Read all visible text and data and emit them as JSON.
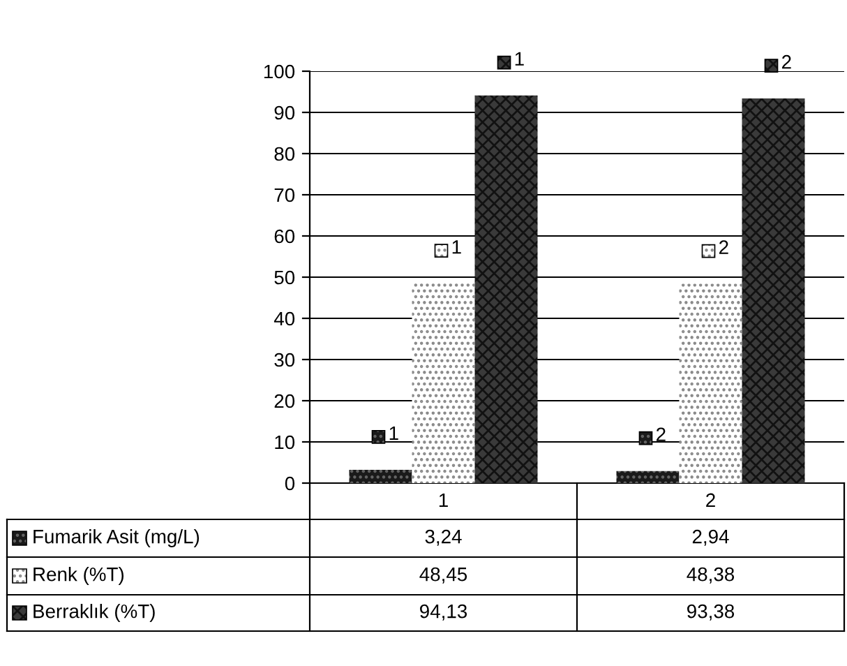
{
  "chart_data": {
    "type": "bar",
    "categories": [
      "1",
      "2"
    ],
    "series": [
      {
        "name": "Fumarik Asit (mg/L)",
        "color": "#1a1a1a",
        "values": [
          3.24,
          2.94
        ],
        "value_labels": [
          "3,24",
          "2,94"
        ]
      },
      {
        "name": "Renk (%T)",
        "color": "#ffffff",
        "values": [
          48.45,
          48.38
        ],
        "value_labels": [
          "48,45",
          "48,38"
        ]
      },
      {
        "name": "Berraklık (%T)",
        "color": "#3a3a3a",
        "values": [
          94.13,
          93.38
        ],
        "value_labels": [
          "94,13",
          "93,38"
        ]
      }
    ],
    "annotations": [
      "1",
      "1",
      "1",
      "2",
      "2",
      "2"
    ],
    "ylim": [
      0,
      100
    ],
    "yticks": [
      0,
      10,
      20,
      30,
      40,
      50,
      60,
      70,
      80,
      90,
      100
    ],
    "grid": "y",
    "legend": "bottom"
  }
}
